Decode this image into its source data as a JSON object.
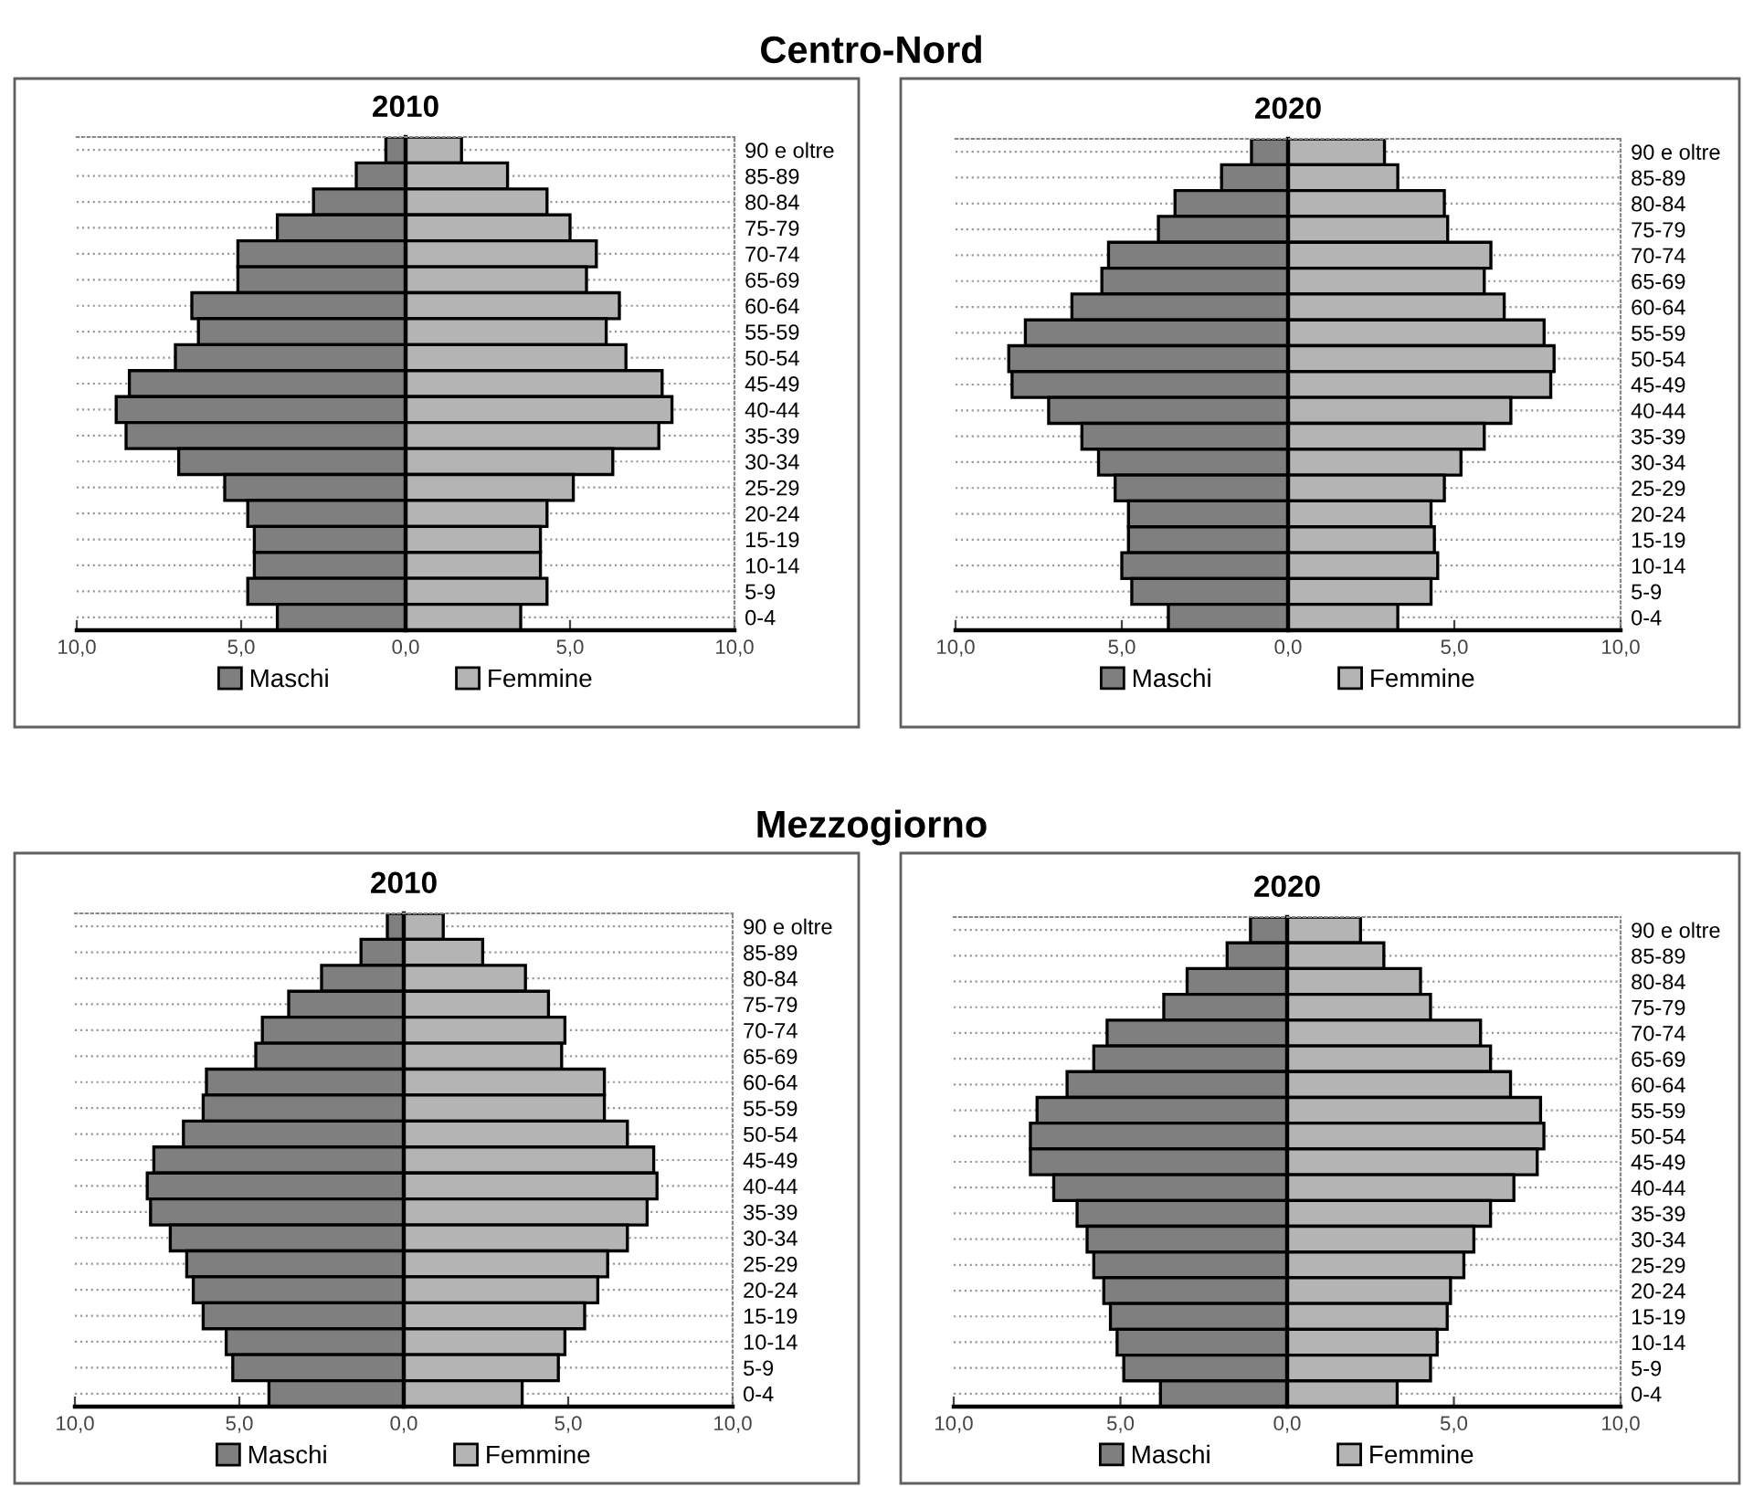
{
  "chart_data": [
    {
      "type": "bar",
      "orientation": "horizontal",
      "stacked": true,
      "subtitle": "Centro-Nord",
      "title": "2010",
      "categories": [
        "90 e oltre",
        "85-89",
        "80-84",
        "75-79",
        "70-74",
        "65-69",
        "60-64",
        "55-59",
        "50-54",
        "45-49",
        "40-44",
        "35-39",
        "30-34",
        "25-29",
        "20-24",
        "15-19",
        "10-14",
        "5-9",
        "0-4"
      ],
      "series": [
        {
          "name": "Maschi",
          "color": "#7f7f7f",
          "values": [
            -0.6,
            -1.5,
            -2.8,
            -3.9,
            -5.1,
            -5.1,
            -6.5,
            -6.3,
            -7.0,
            -8.4,
            -8.8,
            -8.5,
            -6.9,
            -5.5,
            -4.8,
            -4.6,
            -4.6,
            -4.8,
            -3.9
          ]
        },
        {
          "name": "Femmine",
          "color": "#b4b4b4",
          "values": [
            1.7,
            3.1,
            4.3,
            5.0,
            5.8,
            5.5,
            6.5,
            6.1,
            6.7,
            7.8,
            8.1,
            7.7,
            6.3,
            5.1,
            4.3,
            4.1,
            4.1,
            4.3,
            3.5
          ]
        }
      ],
      "xlim": [
        -10,
        10
      ],
      "xticks": [
        {
          "value": -10,
          "label": "10,0"
        },
        {
          "value": -5,
          "label": "5,0"
        },
        {
          "value": 0,
          "label": "0,0"
        },
        {
          "value": 5,
          "label": "5,0"
        },
        {
          "value": 10,
          "label": "10,0"
        }
      ],
      "grid": "y",
      "legend": "bottom"
    },
    {
      "type": "bar",
      "orientation": "horizontal",
      "stacked": true,
      "title": "2020",
      "categories": [
        "90 e oltre",
        "85-89",
        "80-84",
        "75-79",
        "70-74",
        "65-69",
        "60-64",
        "55-59",
        "50-54",
        "45-49",
        "40-44",
        "35-39",
        "30-34",
        "25-29",
        "20-24",
        "15-19",
        "10-14",
        "5-9",
        "0-4"
      ],
      "series": [
        {
          "name": "Maschi",
          "color": "#7f7f7f",
          "values": [
            -1.1,
            -2.0,
            -3.4,
            -3.9,
            -5.4,
            -5.6,
            -6.5,
            -7.9,
            -8.4,
            -8.3,
            -7.2,
            -6.2,
            -5.7,
            -5.2,
            -4.8,
            -4.8,
            -5.0,
            -4.7,
            -3.6
          ]
        },
        {
          "name": "Femmine",
          "color": "#b4b4b4",
          "values": [
            2.9,
            3.3,
            4.7,
            4.8,
            6.1,
            5.9,
            6.5,
            7.7,
            8.0,
            7.9,
            6.7,
            5.9,
            5.2,
            4.7,
            4.3,
            4.4,
            4.5,
            4.3,
            3.3
          ]
        }
      ],
      "xlim": [
        -10,
        10
      ],
      "xticks": [
        {
          "value": -10,
          "label": "10,0"
        },
        {
          "value": -5,
          "label": "5,0"
        },
        {
          "value": 0,
          "label": "0,0"
        },
        {
          "value": 5,
          "label": "5,0"
        },
        {
          "value": 10,
          "label": "10,0"
        }
      ],
      "grid": "y",
      "legend": "bottom"
    },
    {
      "type": "bar",
      "orientation": "horizontal",
      "stacked": true,
      "subtitle": "Mezzogiorno",
      "title": "2010",
      "categories": [
        "90 e oltre",
        "85-89",
        "80-84",
        "75-79",
        "70-74",
        "65-69",
        "60-64",
        "55-59",
        "50-54",
        "45-49",
        "40-44",
        "35-39",
        "30-34",
        "25-29",
        "20-24",
        "15-19",
        "10-14",
        "5-9",
        "0-4"
      ],
      "series": [
        {
          "name": "Maschi",
          "color": "#7f7f7f",
          "values": [
            -0.5,
            -1.3,
            -2.5,
            -3.5,
            -4.3,
            -4.5,
            -6.0,
            -6.1,
            -6.7,
            -7.6,
            -7.8,
            -7.7,
            -7.1,
            -6.6,
            -6.4,
            -6.1,
            -5.4,
            -5.2,
            -4.1
          ]
        },
        {
          "name": "Femmine",
          "color": "#b4b4b4",
          "values": [
            1.2,
            2.4,
            3.7,
            4.4,
            4.9,
            4.8,
            6.1,
            6.1,
            6.8,
            7.6,
            7.7,
            7.4,
            6.8,
            6.2,
            5.9,
            5.5,
            4.9,
            4.7,
            3.6
          ]
        }
      ],
      "xlim": [
        -10,
        10
      ],
      "xticks": [
        {
          "value": -10,
          "label": "10,0"
        },
        {
          "value": -5,
          "label": "5,0"
        },
        {
          "value": 0,
          "label": "0,0"
        },
        {
          "value": 5,
          "label": "5,0"
        },
        {
          "value": 10,
          "label": "10,0"
        }
      ],
      "grid": "y",
      "legend": "bottom"
    },
    {
      "type": "bar",
      "orientation": "horizontal",
      "stacked": true,
      "title": "2020",
      "categories": [
        "90 e oltre",
        "85-89",
        "80-84",
        "75-79",
        "70-74",
        "65-69",
        "60-64",
        "55-59",
        "50-54",
        "45-49",
        "40-44",
        "35-39",
        "30-34",
        "25-29",
        "20-24",
        "15-19",
        "10-14",
        "5-9",
        "0-4"
      ],
      "series": [
        {
          "name": "Maschi",
          "color": "#7f7f7f",
          "values": [
            -1.1,
            -1.8,
            -3.0,
            -3.7,
            -5.4,
            -5.8,
            -6.6,
            -7.5,
            -7.7,
            -7.7,
            -7.0,
            -6.3,
            -6.0,
            -5.8,
            -5.5,
            -5.3,
            -5.1,
            -4.9,
            -3.8
          ]
        },
        {
          "name": "Femmine",
          "color": "#b4b4b4",
          "values": [
            2.2,
            2.9,
            4.0,
            4.3,
            5.8,
            6.1,
            6.7,
            7.6,
            7.7,
            7.5,
            6.8,
            6.1,
            5.6,
            5.3,
            4.9,
            4.8,
            4.5,
            4.3,
            3.3
          ]
        }
      ],
      "xlim": [
        -10,
        10
      ],
      "xticks": [
        {
          "value": -10,
          "label": "10,0"
        },
        {
          "value": -5,
          "label": "5,0"
        },
        {
          "value": 0,
          "label": "0,0"
        },
        {
          "value": 5,
          "label": "5,0"
        },
        {
          "value": 10,
          "label": "10,0"
        }
      ],
      "grid": "y",
      "legend": "bottom"
    }
  ]
}
